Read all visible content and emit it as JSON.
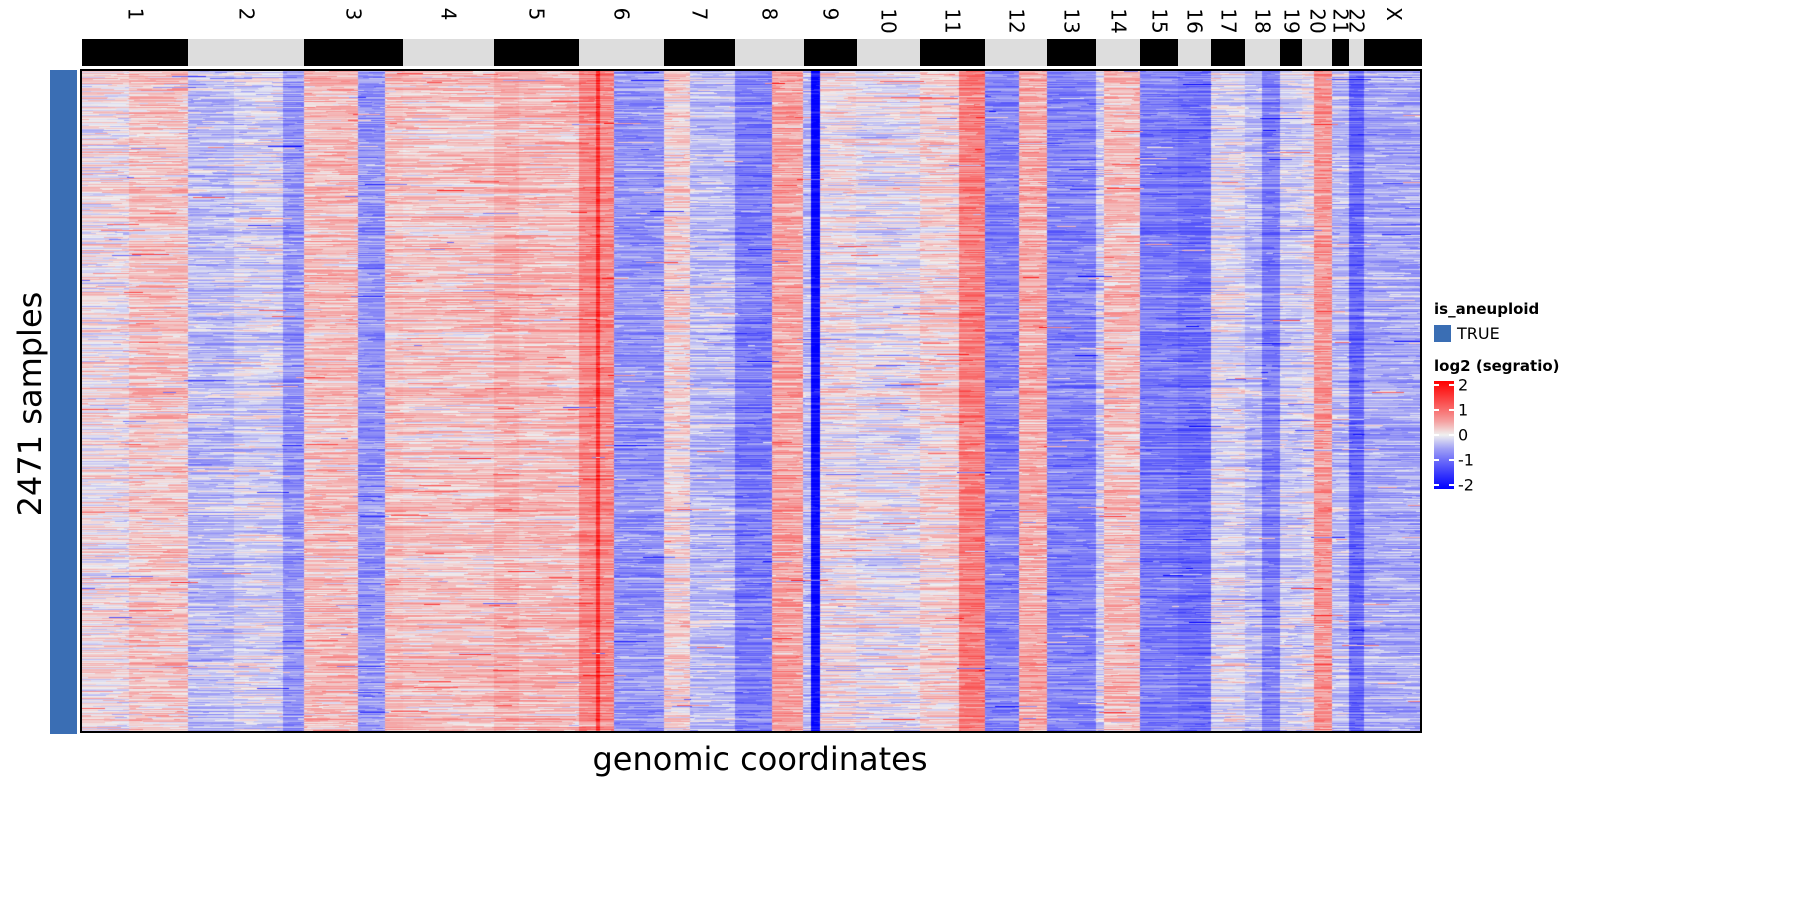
{
  "chart_data": {
    "type": "heatmap",
    "title": "",
    "xlabel": "genomic coordinates",
    "ylabel": "2471 samples",
    "n_samples": 2471,
    "chromosomes": [
      {
        "name": "1",
        "rel_length": 106,
        "band": "black"
      },
      {
        "name": "2",
        "rel_length": 116,
        "band": "grey"
      },
      {
        "name": "3",
        "rel_length": 99,
        "band": "black"
      },
      {
        "name": "4",
        "rel_length": 91,
        "band": "grey"
      },
      {
        "name": "5",
        "rel_length": 85,
        "band": "black"
      },
      {
        "name": "6",
        "rel_length": 85,
        "band": "grey"
      },
      {
        "name": "7",
        "rel_length": 71,
        "band": "black"
      },
      {
        "name": "8",
        "rel_length": 69,
        "band": "grey"
      },
      {
        "name": "9",
        "rel_length": 53,
        "band": "black"
      },
      {
        "name": "10",
        "rel_length": 63,
        "band": "grey"
      },
      {
        "name": "11",
        "rel_length": 65,
        "band": "black"
      },
      {
        "name": "12",
        "rel_length": 62,
        "band": "grey"
      },
      {
        "name": "13",
        "rel_length": 49,
        "band": "black"
      },
      {
        "name": "14",
        "rel_length": 44,
        "band": "grey"
      },
      {
        "name": "15",
        "rel_length": 38,
        "band": "black"
      },
      {
        "name": "16",
        "rel_length": 33,
        "band": "grey"
      },
      {
        "name": "17",
        "rel_length": 34,
        "band": "black"
      },
      {
        "name": "18",
        "rel_length": 35,
        "band": "grey"
      },
      {
        "name": "19",
        "rel_length": 22,
        "band": "black"
      },
      {
        "name": "20",
        "rel_length": 30,
        "band": "grey"
      },
      {
        "name": "21",
        "rel_length": 17,
        "band": "black"
      },
      {
        "name": "22",
        "rel_length": 15,
        "band": "grey"
      },
      {
        "name": "X",
        "rel_length": 58,
        "band": "black"
      }
    ],
    "segments_mean_log2": [
      {
        "chrom": "1",
        "parts": [
          [
            0.0,
            0.45,
            0.05
          ],
          [
            0.45,
            1.0,
            0.25
          ]
        ]
      },
      {
        "chrom": "2",
        "parts": [
          [
            0.0,
            0.4,
            -0.3
          ],
          [
            0.4,
            0.82,
            -0.15
          ],
          [
            0.82,
            1.0,
            -0.6
          ]
        ]
      },
      {
        "chrom": "3",
        "parts": [
          [
            0.0,
            0.55,
            0.3
          ],
          [
            0.55,
            0.82,
            -0.6
          ],
          [
            0.82,
            1.0,
            0.3
          ]
        ]
      },
      {
        "chrom": "4",
        "parts": [
          [
            0.0,
            1.0,
            0.25
          ]
        ]
      },
      {
        "chrom": "5",
        "parts": [
          [
            0.0,
            0.3,
            0.4
          ],
          [
            0.3,
            1.0,
            0.3
          ]
        ]
      },
      {
        "chrom": "6",
        "parts": [
          [
            0.0,
            0.2,
            0.75
          ],
          [
            0.2,
            0.25,
            1.5
          ],
          [
            0.25,
            0.42,
            0.7
          ],
          [
            0.42,
            1.0,
            -0.6
          ]
        ]
      },
      {
        "chrom": "7",
        "parts": [
          [
            0.0,
            0.38,
            0.15
          ],
          [
            0.38,
            1.0,
            -0.3
          ]
        ]
      },
      {
        "chrom": "8",
        "parts": [
          [
            0.0,
            0.55,
            -0.8
          ],
          [
            0.55,
            1.0,
            0.5
          ]
        ]
      },
      {
        "chrom": "9",
        "parts": [
          [
            0.0,
            0.15,
            -0.3
          ],
          [
            0.15,
            0.32,
            -1.9
          ],
          [
            0.32,
            1.0,
            0.05
          ]
        ]
      },
      {
        "chrom": "10",
        "parts": [
          [
            0.0,
            1.0,
            -0.05
          ]
        ]
      },
      {
        "chrom": "11",
        "parts": [
          [
            0.0,
            0.6,
            0.15
          ],
          [
            0.6,
            1.0,
            0.8
          ]
        ]
      },
      {
        "chrom": "12",
        "parts": [
          [
            0.0,
            0.55,
            -0.75
          ],
          [
            0.55,
            1.0,
            0.45
          ]
        ]
      },
      {
        "chrom": "13",
        "parts": [
          [
            0.0,
            1.0,
            -0.75
          ]
        ]
      },
      {
        "chrom": "14",
        "parts": [
          [
            0.0,
            0.2,
            -0.2
          ],
          [
            0.2,
            1.0,
            0.3
          ]
        ]
      },
      {
        "chrom": "15",
        "parts": [
          [
            0.0,
            1.0,
            -0.8
          ]
        ]
      },
      {
        "chrom": "16",
        "parts": [
          [
            0.0,
            1.0,
            -0.9
          ]
        ]
      },
      {
        "chrom": "17",
        "parts": [
          [
            0.0,
            1.0,
            -0.1
          ]
        ]
      },
      {
        "chrom": "18",
        "parts": [
          [
            0.0,
            0.5,
            -0.3
          ],
          [
            0.5,
            1.0,
            -0.8
          ]
        ]
      },
      {
        "chrom": "19",
        "parts": [
          [
            0.0,
            1.0,
            -0.2
          ]
        ]
      },
      {
        "chrom": "20",
        "parts": [
          [
            0.0,
            0.4,
            -0.1
          ],
          [
            0.4,
            1.0,
            0.6
          ]
        ]
      },
      {
        "chrom": "21",
        "parts": [
          [
            0.0,
            1.0,
            -0.3
          ]
        ]
      },
      {
        "chrom": "22",
        "parts": [
          [
            0.0,
            1.0,
            -1.0
          ]
        ]
      },
      {
        "chrom": "X",
        "parts": [
          [
            0.0,
            1.0,
            -0.45
          ]
        ]
      }
    ],
    "colorscale": {
      "title": "log2 (segratio)",
      "min": -2,
      "max": 2,
      "ticks": [
        2,
        1,
        0,
        -1,
        -2
      ],
      "tick_labels": [
        "2",
        "1",
        "0",
        "-1",
        "-2"
      ],
      "low_color": "#0000ff",
      "mid_color": "#f0f0f0",
      "high_color": "#ff0000"
    },
    "annotation": {
      "title": "is_aneuploid",
      "levels": [
        {
          "label": "TRUE",
          "color": "#3a6eb4"
        }
      ]
    },
    "band_colors": {
      "black": "#000000",
      "grey": "#dddddd"
    },
    "legend_position": "right"
  }
}
